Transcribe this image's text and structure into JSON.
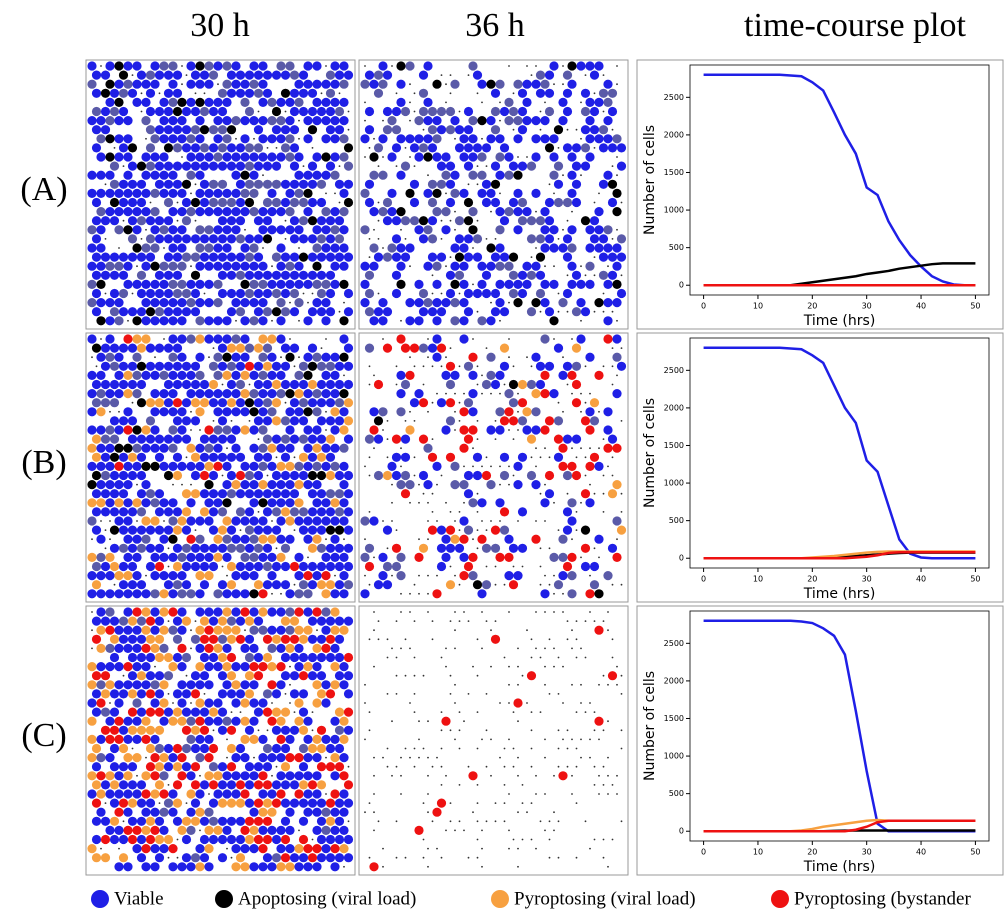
{
  "figure": {
    "columns": [
      "30 h",
      "36 h",
      "time-course plot"
    ],
    "rows": [
      "(A)",
      "(B)",
      "(C)"
    ]
  },
  "chart_data": [
    {
      "type": "line",
      "xlabel": "Time (hrs)",
      "ylabel": "Number of cells",
      "x": [
        0,
        2,
        4,
        6,
        8,
        10,
        12,
        14,
        16,
        18,
        20,
        22,
        24,
        26,
        28,
        30,
        32,
        34,
        36,
        38,
        40,
        42,
        44,
        46,
        48,
        50
      ],
      "xlim": [
        -2.5,
        52.5
      ],
      "xticks": [
        0,
        10,
        20,
        30,
        40,
        50
      ],
      "ylim": [
        -130,
        2930
      ],
      "yticks": [
        0,
        500,
        1000,
        1500,
        2000,
        2500
      ],
      "series": [
        {
          "name": "Viable",
          "color": "#1f1fe6",
          "values": [
            2800,
            2800,
            2800,
            2800,
            2800,
            2800,
            2800,
            2800,
            2790,
            2780,
            2700,
            2590,
            2300,
            2000,
            1750,
            1300,
            1200,
            850,
            600,
            400,
            250,
            120,
            50,
            10,
            0,
            0
          ]
        },
        {
          "name": "Apoptosing (viral load)",
          "color": "#000000",
          "values": [
            0,
            0,
            0,
            0,
            0,
            0,
            0,
            0,
            0,
            20,
            40,
            60,
            80,
            100,
            120,
            150,
            170,
            190,
            220,
            240,
            260,
            280,
            290,
            290,
            290,
            290
          ]
        },
        {
          "name": "Pyroptosing (viral load)",
          "color": "#f7a040",
          "values": [
            0,
            0,
            0,
            0,
            0,
            0,
            0,
            0,
            0,
            0,
            0,
            0,
            0,
            0,
            0,
            0,
            0,
            0,
            0,
            0,
            0,
            0,
            0,
            0,
            0,
            0
          ]
        },
        {
          "name": "Pyroptosing (bystander",
          "color": "#ee1111",
          "values": [
            0,
            0,
            0,
            0,
            0,
            0,
            0,
            0,
            0,
            0,
            0,
            0,
            0,
            0,
            0,
            0,
            0,
            0,
            0,
            0,
            0,
            0,
            0,
            0,
            0,
            0
          ]
        }
      ]
    },
    {
      "type": "line",
      "xlabel": "Time (hrs)",
      "ylabel": "Number of cells",
      "x": [
        0,
        2,
        4,
        6,
        8,
        10,
        12,
        14,
        16,
        18,
        20,
        22,
        24,
        26,
        28,
        30,
        32,
        34,
        36,
        38,
        40,
        42,
        44,
        46,
        48,
        50
      ],
      "xlim": [
        -2.5,
        52.5
      ],
      "xticks": [
        0,
        10,
        20,
        30,
        40,
        50
      ],
      "ylim": [
        -130,
        2930
      ],
      "yticks": [
        0,
        500,
        1000,
        1500,
        2000,
        2500
      ],
      "series": [
        {
          "name": "Viable",
          "color": "#1f1fe6",
          "values": [
            2800,
            2800,
            2800,
            2800,
            2800,
            2800,
            2800,
            2800,
            2790,
            2780,
            2700,
            2600,
            2300,
            2000,
            1800,
            1300,
            1150,
            700,
            250,
            60,
            10,
            0,
            0,
            0,
            0,
            0
          ]
        },
        {
          "name": "Apoptosing (viral load)",
          "color": "#000000",
          "values": [
            0,
            0,
            0,
            0,
            0,
            0,
            0,
            0,
            0,
            0,
            0,
            5,
            10,
            20,
            30,
            40,
            50,
            60,
            70,
            75,
            75,
            75,
            75,
            75,
            75,
            75
          ]
        },
        {
          "name": "Pyroptosing (viral load)",
          "color": "#f7a040",
          "values": [
            0,
            0,
            0,
            0,
            0,
            0,
            0,
            0,
            0,
            0,
            10,
            20,
            30,
            45,
            60,
            75,
            85,
            90,
            90,
            90,
            90,
            90,
            90,
            90,
            90,
            90
          ]
        },
        {
          "name": "Pyroptosing (bystander",
          "color": "#ee1111",
          "values": [
            0,
            0,
            0,
            0,
            0,
            0,
            0,
            0,
            0,
            0,
            0,
            0,
            0,
            0,
            10,
            20,
            40,
            70,
            80,
            80,
            80,
            80,
            80,
            80,
            80,
            80
          ]
        }
      ]
    },
    {
      "type": "line",
      "xlabel": "Time (hrs)",
      "ylabel": "Number of cells",
      "x": [
        0,
        2,
        4,
        6,
        8,
        10,
        12,
        14,
        16,
        18,
        20,
        22,
        24,
        26,
        28,
        30,
        32,
        34,
        36,
        38,
        40,
        42,
        44,
        46,
        48,
        50
      ],
      "xlim": [
        -2.5,
        52.5
      ],
      "xticks": [
        0,
        10,
        20,
        30,
        40,
        50
      ],
      "ylim": [
        -130,
        2930
      ],
      "yticks": [
        0,
        500,
        1000,
        1500,
        2000,
        2500
      ],
      "series": [
        {
          "name": "Viable",
          "color": "#1f1fe6",
          "values": [
            2800,
            2800,
            2800,
            2800,
            2800,
            2800,
            2800,
            2800,
            2800,
            2790,
            2770,
            2700,
            2600,
            2350,
            1600,
            800,
            100,
            0,
            0,
            0,
            0,
            0,
            0,
            0,
            0,
            0
          ]
        },
        {
          "name": "Apoptosing (viral load)",
          "color": "#000000",
          "values": [
            0,
            0,
            0,
            0,
            0,
            0,
            0,
            0,
            0,
            0,
            0,
            0,
            5,
            8,
            10,
            10,
            10,
            10,
            10,
            10,
            10,
            10,
            10,
            10,
            10,
            10
          ]
        },
        {
          "name": "Pyroptosing (viral load)",
          "color": "#f7a040",
          "values": [
            0,
            0,
            0,
            0,
            0,
            0,
            0,
            0,
            0,
            10,
            30,
            60,
            80,
            100,
            120,
            140,
            150,
            140,
            140,
            140,
            140,
            140,
            140,
            140,
            140,
            140
          ]
        },
        {
          "name": "Pyroptosing (bystander",
          "color": "#ee1111",
          "values": [
            0,
            0,
            0,
            0,
            0,
            0,
            0,
            0,
            0,
            0,
            0,
            0,
            0,
            0,
            20,
            60,
            120,
            140,
            140,
            140,
            140,
            140,
            140,
            140,
            140,
            140
          ]
        }
      ]
    }
  ]
}
